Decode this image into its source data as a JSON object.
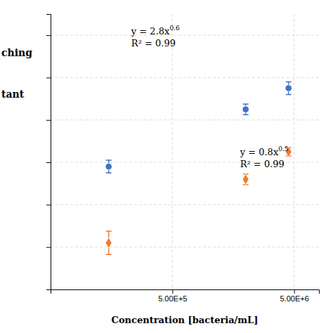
{
  "chart_data": {
    "type": "scatter",
    "xlabel": "Concentration [bacteria/mL]",
    "log": "x",
    "xlim": [
      50000,
      8000000
    ],
    "ylim": [
      0,
      13
    ],
    "xticks": [
      {
        "value": 500000,
        "label": "5.00E+5"
      },
      {
        "value": 5000000,
        "label": "5.00E+6"
      }
    ],
    "yticks": [
      2,
      4,
      6,
      8,
      10,
      12
    ],
    "grid": true,
    "tick_labels": "x",
    "series": [
      {
        "color": "#4472C4",
        "marker": "circle",
        "x": [
          150000,
          2000000,
          4500000
        ],
        "values": [
          5.8,
          8.5,
          9.5
        ],
        "yerr": [
          0.3,
          0.25,
          0.3
        ]
      },
      {
        "color": "#ED7D31",
        "marker": "diamond",
        "x": [
          150000,
          2000000,
          4500000
        ],
        "values": [
          2.2,
          5.2,
          6.5
        ],
        "yerr": [
          0.55,
          0.25,
          0.2
        ]
      }
    ],
    "annotations": [
      {
        "lines": [
          [
            "y = 2.8x",
            "0.6"
          ],
          [
            "R² = 0.99"
          ]
        ],
        "x": 230000,
        "y": 12.5
      },
      {
        "lines": [
          [
            "y = 0.8x",
            "0.5"
          ],
          [
            "R² = 0.99"
          ]
        ],
        "x": 1800000,
        "y": 6.8
      },
      {
        "text": "ching"
      },
      {
        "text": "tant"
      }
    ]
  }
}
